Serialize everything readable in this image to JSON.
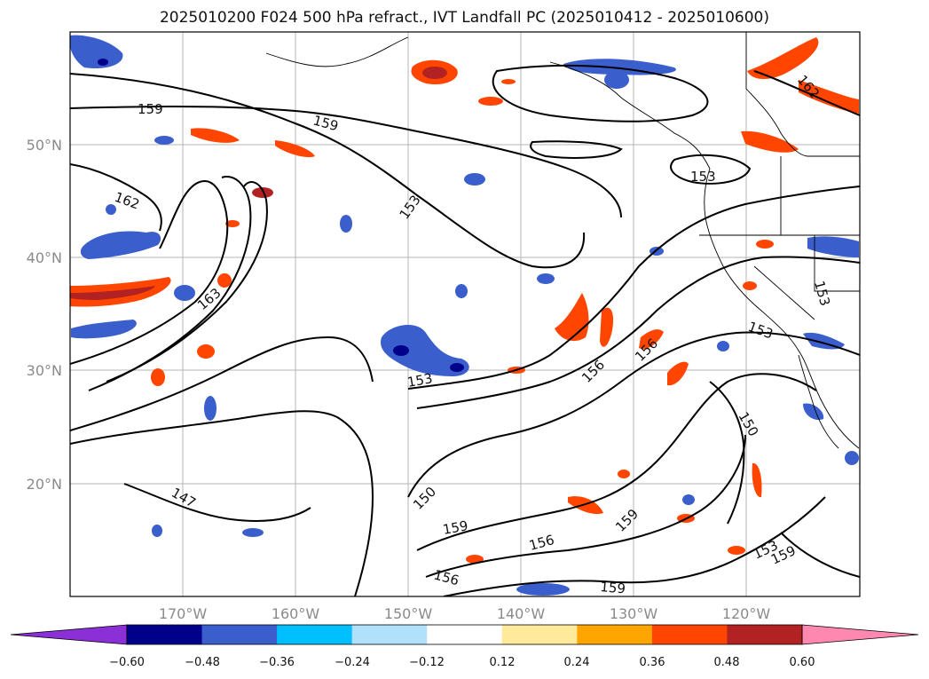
{
  "title": "2025010200 F024 500 hPa refract., IVT Landfall PC (2025010412 - 2025010600)",
  "map": {
    "lat_labels": [
      "50°N",
      "40°N",
      "30°N",
      "20°N"
    ],
    "lon_labels": [
      "170°W",
      "160°W",
      "150°W",
      "140°W",
      "130°W",
      "120°W"
    ],
    "gridlines": true,
    "contour_color": "#000000",
    "contour_labels": [
      "159",
      "159",
      "162",
      "153",
      "163",
      "153",
      "150",
      "147",
      "159",
      "156",
      "156",
      "156",
      "153",
      "150",
      "159",
      "159",
      "159",
      "153",
      "162",
      "153",
      "156",
      "153"
    ]
  },
  "colorbar": {
    "colors": [
      "#8b2fd6",
      "#00008b",
      "#3a5fcd",
      "#00bfff",
      "#b0e0fa",
      "#ffffff",
      "#ffe99a",
      "#ffa500",
      "#ff4500",
      "#b22222",
      "#ff88b0"
    ],
    "ticks": [
      "−0.60",
      "−0.48",
      "−0.36",
      "−0.24",
      "−0.12",
      "0.12",
      "0.24",
      "0.36",
      "0.48",
      "0.60"
    ]
  }
}
